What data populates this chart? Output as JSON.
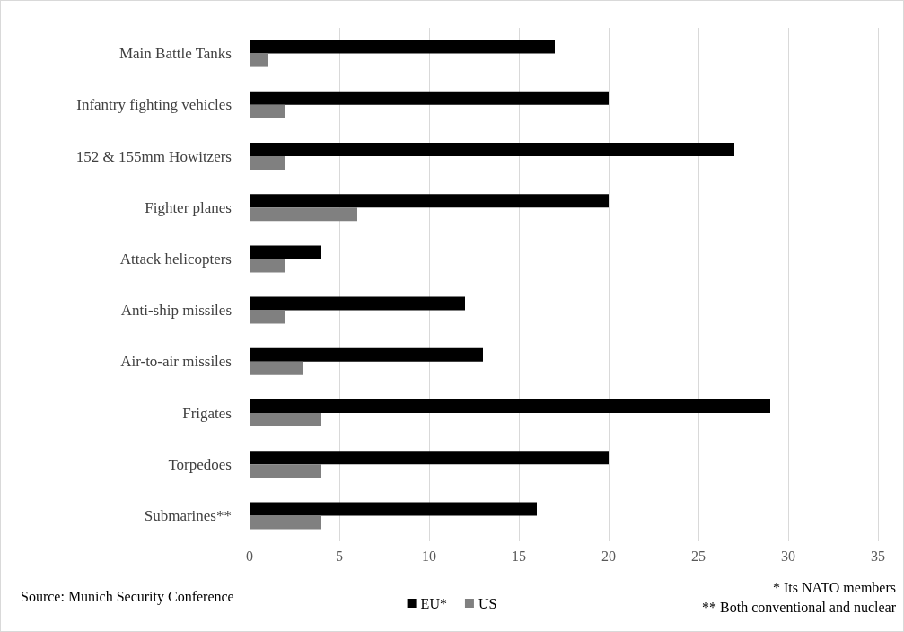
{
  "chart_data": {
    "type": "bar",
    "orientation": "horizontal",
    "categories": [
      "Main Battle Tanks",
      "Infantry fighting vehicles",
      "152 & 155mm Howitzers",
      "Fighter planes",
      "Attack helicopters",
      "Anti-ship missiles",
      "Air-to-air missiles",
      "Frigates",
      "Torpedoes",
      "Submarines**"
    ],
    "series": [
      {
        "name": "EU*",
        "color": "#000000",
        "values": [
          17,
          20,
          27,
          20,
          4,
          12,
          13,
          29,
          20,
          16
        ]
      },
      {
        "name": "US",
        "color": "#808080",
        "values": [
          1,
          2,
          2,
          6,
          2,
          2,
          3,
          4,
          4,
          4
        ]
      }
    ],
    "xlim": [
      0,
      35
    ],
    "xticks": [
      0,
      5,
      10,
      15,
      20,
      25,
      30,
      35
    ],
    "grid": "x",
    "legend": "bottom",
    "annotations": [
      "Source: Munich Security Conference",
      "* Its NATO members",
      "** Both conventional and nuclear"
    ]
  }
}
